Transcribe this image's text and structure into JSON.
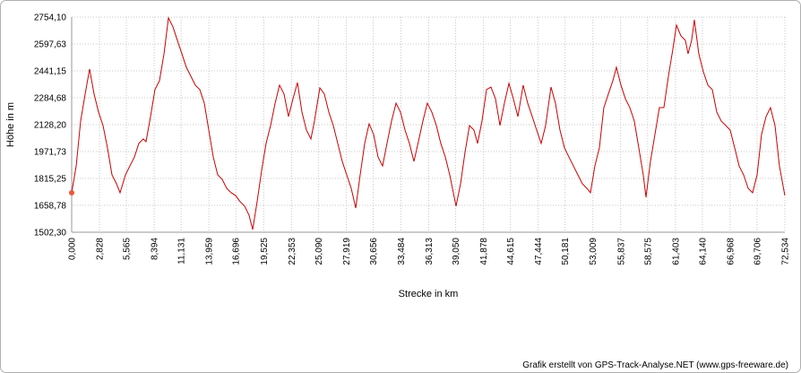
{
  "chart_data": {
    "type": "line",
    "xlabel": "Strecke  in  km",
    "ylabel": "Höhe  in  m",
    "footer": "Grafik erstellt von GPS-Track-Analyse.NET (www.gps-freeware.de)",
    "xlim": [
      0,
      72.534
    ],
    "ylim": [
      1502.3,
      2754.1
    ],
    "grid": true,
    "yticks": [
      {
        "value": 1502.3,
        "label": "1502,30"
      },
      {
        "value": 1658.78,
        "label": "1658,78"
      },
      {
        "value": 1815.25,
        "label": "1815,25"
      },
      {
        "value": 1971.73,
        "label": "1971,73"
      },
      {
        "value": 2128.2,
        "label": "2128,20"
      },
      {
        "value": 2284.68,
        "label": "2284,68"
      },
      {
        "value": 2441.15,
        "label": "2441,15"
      },
      {
        "value": 2597.63,
        "label": "2597,63"
      },
      {
        "value": 2754.1,
        "label": "2754,10"
      }
    ],
    "xticks": [
      {
        "value": 0,
        "label": "0,000"
      },
      {
        "value": 2.828,
        "label": "2,828"
      },
      {
        "value": 5.565,
        "label": "5,565"
      },
      {
        "value": 8.394,
        "label": "8,394"
      },
      {
        "value": 11.131,
        "label": "11,131"
      },
      {
        "value": 13.959,
        "label": "13,959"
      },
      {
        "value": 16.696,
        "label": "16,696"
      },
      {
        "value": 19.525,
        "label": "19,525"
      },
      {
        "value": 22.353,
        "label": "22,353"
      },
      {
        "value": 25.09,
        "label": "25,090"
      },
      {
        "value": 27.919,
        "label": "27,919"
      },
      {
        "value": 30.656,
        "label": "30,656"
      },
      {
        "value": 33.484,
        "label": "33,484"
      },
      {
        "value": 36.313,
        "label": "36,313"
      },
      {
        "value": 39.05,
        "label": "39,050"
      },
      {
        "value": 41.878,
        "label": "41,878"
      },
      {
        "value": 44.615,
        "label": "44,615"
      },
      {
        "value": 47.444,
        "label": "47,444"
      },
      {
        "value": 50.181,
        "label": "50,181"
      },
      {
        "value": 53.009,
        "label": "53,009"
      },
      {
        "value": 55.837,
        "label": "55,837"
      },
      {
        "value": 58.575,
        "label": "58,575"
      },
      {
        "value": 61.403,
        "label": "61,403"
      },
      {
        "value": 64.14,
        "label": "64,140"
      },
      {
        "value": 66.968,
        "label": "66,968"
      },
      {
        "value": 69.706,
        "label": "69,706"
      },
      {
        "value": 72.534,
        "label": "72,534"
      }
    ],
    "x": [
      0,
      0.46,
      0.91,
      1.37,
      1.82,
      2.28,
      2.73,
      3.19,
      3.64,
      4.1,
      4.56,
      4.92,
      5.47,
      5.92,
      6.38,
      6.83,
      7.29,
      7.56,
      8.02,
      8.47,
      8.93,
      9.39,
      9.84,
      10.3,
      10.75,
      11.21,
      11.66,
      12.12,
      12.57,
      13.03,
      13.49,
      13.94,
      14.4,
      14.85,
      15.31,
      15.76,
      16.22,
      16.67,
      17.13,
      17.59,
      18.04,
      18.41,
      18.86,
      19.32,
      19.77,
      20.23,
      20.69,
      21.14,
      21.6,
      22.05,
      22.51,
      22.96,
      23.42,
      23.87,
      24.33,
      24.69,
      25.24,
      25.7,
      26.15,
      26.61,
      27.06,
      27.52,
      27.97,
      28.43,
      28.89,
      29.34,
      29.8,
      30.25,
      30.71,
      31.16,
      31.62,
      32.07,
      32.53,
      32.99,
      33.44,
      33.9,
      34.35,
      34.81,
      35.26,
      35.72,
      36.17,
      36.63,
      37.09,
      37.54,
      38.0,
      38.45,
      39.09,
      39.55,
      40.0,
      40.46,
      40.91,
      41.28,
      41.73,
      42.19,
      42.64,
      43.1,
      43.56,
      44.01,
      44.47,
      44.92,
      45.38,
      45.92,
      46.38,
      46.84,
      47.29,
      47.75,
      48.2,
      48.75,
      49.2,
      49.66,
      50.12,
      50.57,
      51.03,
      51.48,
      51.94,
      52.39,
      52.76,
      53.21,
      53.67,
      54.12,
      54.58,
      55.04,
      55.4,
      55.86,
      56.31,
      56.77,
      57.22,
      57.68,
      58.13,
      58.41,
      58.86,
      59.32,
      59.77,
      60.23,
      60.69,
      61.14,
      61.51,
      61.96,
      62.42,
      62.69,
      63.05,
      63.33,
      63.78,
      64.24,
      64.7,
      65.15,
      65.61,
      66.06,
      66.52,
      66.97,
      67.43,
      67.88,
      68.34,
      68.8,
      69.25,
      69.71,
      70.16,
      70.62,
      71.07,
      71.53,
      71.98,
      72.53
    ],
    "series": [
      {
        "color": "#cc0000",
        "values": [
          1732,
          1888,
          2149,
          2306,
          2452,
          2306,
          2201,
          2123,
          1993,
          1836,
          1784,
          1732,
          1836,
          1888,
          1940,
          2019,
          2045,
          2029,
          2175,
          2332,
          2384,
          2540,
          2749,
          2697,
          2618,
          2540,
          2462,
          2410,
          2358,
          2332,
          2253,
          2097,
          1940,
          1836,
          1810,
          1758,
          1732,
          1716,
          1680,
          1654,
          1601,
          1518,
          1680,
          1862,
          2019,
          2123,
          2253,
          2358,
          2306,
          2175,
          2279,
          2373,
          2201,
          2097,
          2045,
          2149,
          2342,
          2306,
          2201,
          2123,
          2019,
          1914,
          1836,
          1758,
          1643,
          1836,
          2019,
          2133,
          2071,
          1940,
          1888,
          2019,
          2149,
          2253,
          2201,
          2097,
          2019,
          1914,
          2029,
          2149,
          2253,
          2201,
          2123,
          2019,
          1940,
          1836,
          1654,
          1784,
          1966,
          2123,
          2097,
          2019,
          2149,
          2332,
          2347,
          2279,
          2123,
          2253,
          2368,
          2279,
          2175,
          2358,
          2253,
          2175,
          2097,
          2019,
          2123,
          2347,
          2253,
          2097,
          1993,
          1940,
          1888,
          1836,
          1784,
          1758,
          1732,
          1888,
          1993,
          2227,
          2306,
          2384,
          2462,
          2358,
          2279,
          2227,
          2149,
          1993,
          1836,
          1706,
          1914,
          2071,
          2227,
          2227,
          2410,
          2566,
          2707,
          2645,
          2618,
          2540,
          2618,
          2738,
          2540,
          2436,
          2358,
          2332,
          2201,
          2149,
          2123,
          2097,
          1993,
          1888,
          1836,
          1758,
          1732,
          1836,
          2071,
          2175,
          2227,
          2123,
          1888,
          1716
        ]
      }
    ]
  }
}
